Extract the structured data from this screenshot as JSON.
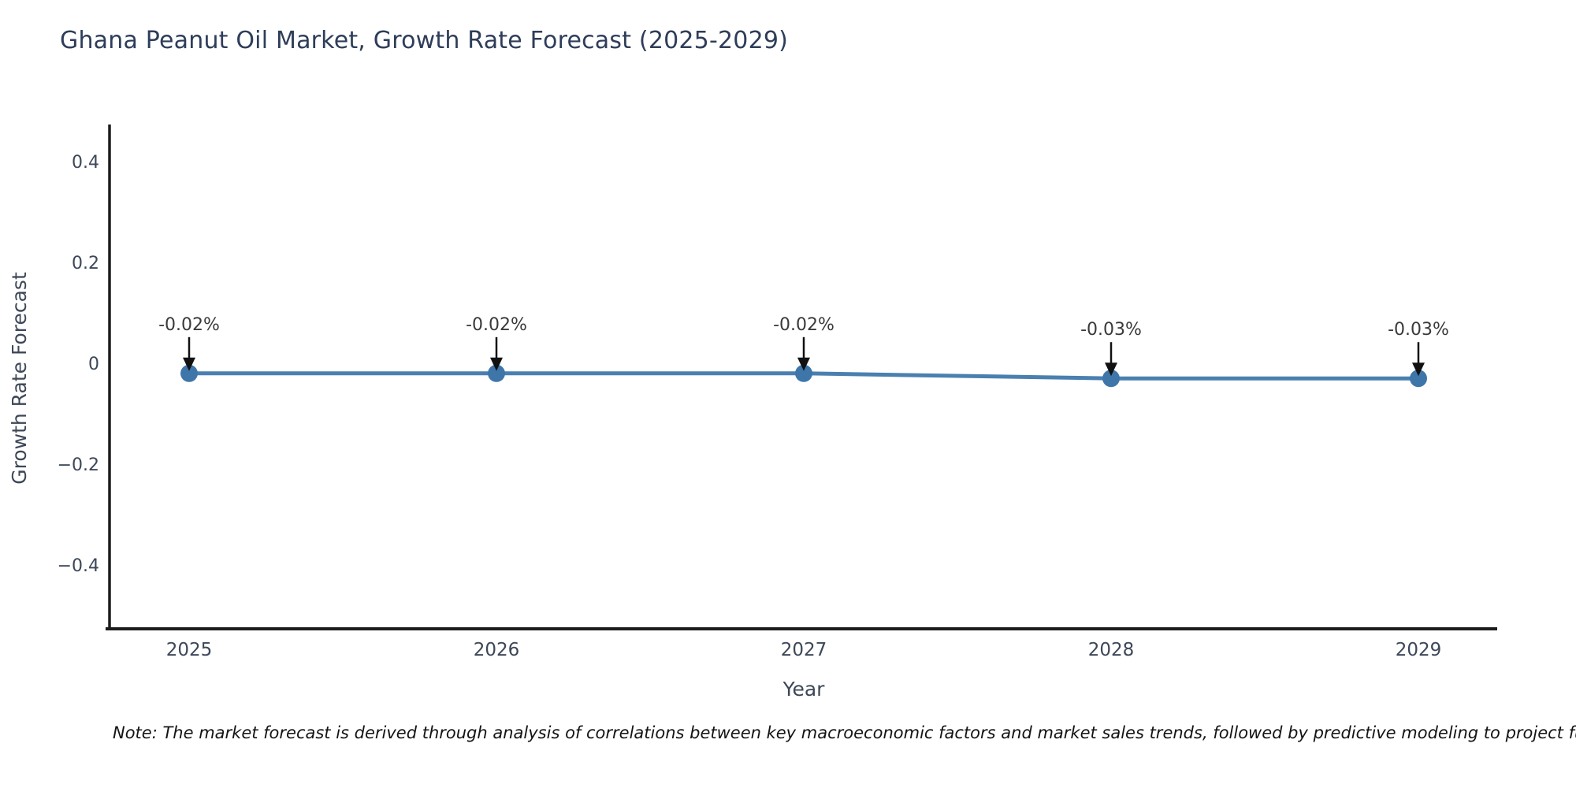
{
  "title": "Ghana Peanut Oil Market, Growth Rate Forecast (2025-2029)",
  "footnote": "Note: The market forecast is derived through analysis of correlations between key macroeconomic factors and market sales trends, followed by predictive modeling to project future sales.",
  "chart_data": {
    "type": "line",
    "x": [
      2025,
      2026,
      2027,
      2028,
      2029
    ],
    "y": [
      -0.02,
      -0.02,
      -0.02,
      -0.03,
      -0.03
    ],
    "point_labels": [
      "-0.02%",
      "-0.02%",
      "-0.02%",
      "-0.03%",
      "-0.03%"
    ],
    "xtick_labels": [
      "2025",
      "2026",
      "2027",
      "2028",
      "2029"
    ],
    "yticks": [
      0.4,
      0.2,
      0,
      -0.2,
      -0.4
    ],
    "ytick_labels": [
      "0.4",
      "0.2",
      "0",
      "−0.2",
      "−0.4"
    ],
    "xlabel": "Year",
    "ylabel": "Growth Rate Forecast",
    "ylim": [
      -0.52,
      0.47
    ],
    "grid": false,
    "legend": null,
    "colors": {
      "line": "#4a80b0",
      "marker": "#3e76aa",
      "axis": "#1c1c1c",
      "tick_text": "#3d4758",
      "title_text": "#2e3d59",
      "annotation_text": "#3a3a3a",
      "arrow": "#111111"
    }
  }
}
